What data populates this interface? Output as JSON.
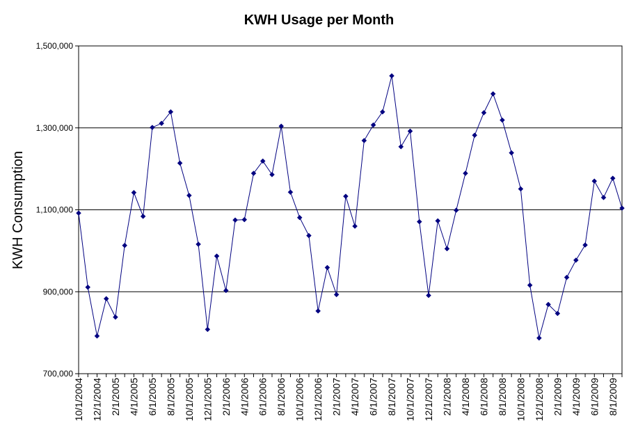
{
  "chart_data": {
    "type": "line",
    "title": "KWH Usage per Month",
    "xlabel": "",
    "ylabel": "KWH Consumption",
    "ylim": [
      700000,
      1500000
    ],
    "yticks": [
      700000,
      900000,
      1100000,
      1300000,
      1500000
    ],
    "ytick_labels": [
      "700,000",
      "900,000",
      "1,100,000",
      "1,300,000",
      "1,500,000"
    ],
    "grid": "horizontal",
    "colors": {
      "series": "#000080",
      "grid": "#000000",
      "axis": "#000000"
    },
    "x": [
      "10/1/2004",
      "11/1/2004",
      "12/1/2004",
      "1/1/2005",
      "2/1/2005",
      "3/1/2005",
      "4/1/2005",
      "5/1/2005",
      "6/1/2005",
      "7/1/2005",
      "8/1/2005",
      "9/1/2005",
      "10/1/2005",
      "11/1/2005",
      "12/1/2005",
      "1/1/2006",
      "2/1/2006",
      "3/1/2006",
      "4/1/2006",
      "5/1/2006",
      "6/1/2006",
      "7/1/2006",
      "8/1/2006",
      "9/1/2006",
      "10/1/2006",
      "11/1/2006",
      "12/1/2006",
      "1/1/2007",
      "2/1/2007",
      "3/1/2007",
      "4/1/2007",
      "5/1/2007",
      "6/1/2007",
      "7/1/2007",
      "8/1/2007",
      "9/1/2007",
      "10/1/2007",
      "11/1/2007",
      "12/1/2007",
      "1/1/2008",
      "2/1/2008",
      "3/1/2008",
      "4/1/2008",
      "5/1/2008",
      "6/1/2008",
      "7/1/2008",
      "8/1/2008",
      "9/1/2008",
      "10/1/2008",
      "11/1/2008",
      "12/1/2008",
      "1/1/2009",
      "2/1/2009",
      "3/1/2009",
      "4/1/2009",
      "5/1/2009",
      "6/1/2009",
      "7/1/2009",
      "8/1/2009",
      "9/1/2009"
    ],
    "xtick_labels": [
      "10/1/2004",
      "12/1/2004",
      "2/1/2005",
      "4/1/2005",
      "6/1/2005",
      "8/1/2005",
      "10/1/2005",
      "12/1/2005",
      "2/1/2006",
      "4/1/2006",
      "6/1/2006",
      "8/1/2006",
      "10/1/2006",
      "12/1/2006",
      "2/1/2007",
      "4/1/2007",
      "6/1/2007",
      "8/1/2007",
      "10/1/2007",
      "12/1/2007",
      "2/1/2008",
      "4/1/2008",
      "6/1/2008",
      "8/1/2008",
      "10/1/2008",
      "12/1/2008",
      "2/1/2009",
      "4/1/2009",
      "6/1/2009",
      "8/1/2009"
    ],
    "series": [
      {
        "values": [
          1092000,
          911000,
          792000,
          883000,
          838000,
          1013000,
          1142000,
          1084000,
          1301000,
          1311000,
          1339000,
          1214000,
          1135000,
          1016000,
          808000,
          987000,
          903000,
          1075000,
          1076000,
          1189000,
          1219000,
          1186000,
          1304000,
          1143000,
          1081000,
          1037000,
          853000,
          959000,
          893000,
          1133000,
          1060000,
          1269000,
          1307000,
          1339000,
          1427000,
          1254000,
          1292000,
          1071000,
          891000,
          1073000,
          1005000,
          1099000,
          1189000,
          1282000,
          1337000,
          1383000,
          1319000,
          1239000,
          1151000,
          916000,
          787000,
          869000,
          847000,
          935000,
          977000,
          1014000,
          1170000,
          1130000,
          1177000,
          1104000
        ]
      }
    ]
  }
}
